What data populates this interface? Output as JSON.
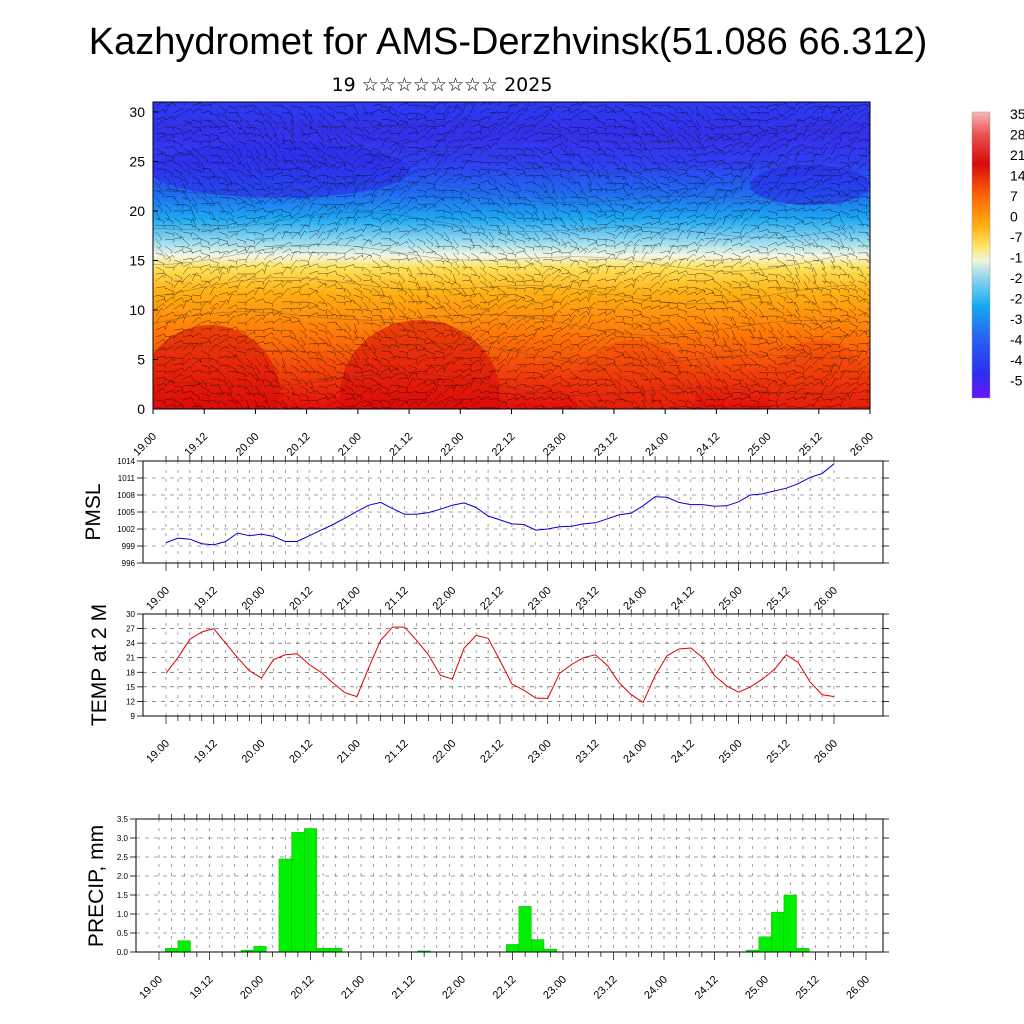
{
  "page": {
    "title": "Kazhydromet for AMS-Derzhvinsk(51.086 66.312)",
    "subtitle": "19 ☆☆☆☆☆☆☆☆ 2025"
  },
  "colors": {
    "pmsl_line": "#0000cc",
    "temp_line": "#dd0000",
    "precip_bar": "#00ee00",
    "colorbar": [
      "#5a12ff",
      "#2d2df0",
      "#2a5cf0",
      "#1e8ef5",
      "#16b4f5",
      "#8fd8ee",
      "#e8f4d8",
      "#ffeb70",
      "#ffd23c",
      "#ffb014",
      "#ff8f0a",
      "#ff6a05",
      "#f23a05",
      "#d80a0a",
      "#e02a2a",
      "#f07070",
      "#f6b0b0"
    ]
  },
  "chart_data": [
    {
      "type": "heatmap",
      "description_key": "cross_section",
      "ylim": [
        0,
        31
      ],
      "yticks": [
        "0",
        "5",
        "10",
        "15",
        "20",
        "25",
        "30"
      ],
      "xticks": [
        "19.00",
        "19.12",
        "20.00",
        "20.12",
        "21.00",
        "21.12",
        "22.00",
        "22.12",
        "23.00",
        "23.12",
        "24.00",
        "24.12",
        "25.00",
        "25.12",
        "26.00"
      ],
      "colorbar_labels": [
        "35",
        "28",
        "21",
        "14",
        "7",
        "0",
        "-7",
        "-1",
        "-2",
        "-2",
        "-3",
        "-4",
        "-4",
        "-5"
      ]
    },
    {
      "type": "line",
      "ylabel": "PMSL",
      "ylim": [
        996,
        1014
      ],
      "yticks": [
        "996",
        "999",
        "1002",
        "1005",
        "1008",
        "1011",
        "1014"
      ],
      "xticks": [
        "19.00",
        "19.12",
        "20.00",
        "20.12",
        "21.00",
        "21.12",
        "22.00",
        "22.12",
        "23.00",
        "23.12",
        "24.00",
        "24.12",
        "25.00",
        "25.12",
        "26.00"
      ],
      "x": [
        0,
        1,
        2,
        3,
        4,
        5,
        6,
        7,
        8,
        9,
        10,
        11,
        12,
        13,
        14,
        15,
        16,
        17,
        18,
        19,
        20,
        21,
        22,
        23,
        24,
        25,
        26,
        27,
        28,
        29,
        30,
        31,
        32,
        33,
        34,
        35,
        36,
        37,
        38,
        39,
        40,
        41,
        42,
        43,
        44,
        45,
        46,
        47,
        48,
        49,
        50,
        51,
        52,
        53,
        54,
        55,
        56
      ],
      "values": [
        999.6,
        1000.4,
        1000.2,
        999.4,
        999.2,
        999.8,
        1001.3,
        1000.8,
        1001.1,
        1000.7,
        999.8,
        999.8,
        1000.8,
        1001.8,
        1002.8,
        1003.9,
        1005.1,
        1006.2,
        1006.7,
        1005.6,
        1004.6,
        1004.6,
        1004.9,
        1005.5,
        1006.2,
        1006.6,
        1005.8,
        1004.3,
        1003.6,
        1002.9,
        1002.8,
        1001.8,
        1002.0,
        1002.4,
        1002.5,
        1002.9,
        1003.1,
        1003.8,
        1004.5,
        1004.8,
        1006.1,
        1007.7,
        1007.6,
        1006.7,
        1006.3,
        1006.3,
        1006.0,
        1006.1,
        1006.8,
        1008.0,
        1008.2,
        1008.7,
        1009.2,
        1010.0,
        1011.1,
        1011.8,
        1013.5
      ]
    },
    {
      "type": "line",
      "ylabel": "TEMP at 2 M",
      "ylim": [
        9,
        30
      ],
      "yticks": [
        "9",
        "12",
        "15",
        "18",
        "21",
        "24",
        "27",
        "30"
      ],
      "xticks": [
        "19.00",
        "19.12",
        "20.00",
        "20.12",
        "21.00",
        "21.12",
        "22.00",
        "22.12",
        "23.00",
        "23.12",
        "24.00",
        "24.12",
        "25.00",
        "25.12",
        "26.00"
      ],
      "x": [
        0,
        1,
        2,
        3,
        4,
        5,
        6,
        7,
        8,
        9,
        10,
        11,
        12,
        13,
        14,
        15,
        16,
        17,
        18,
        19,
        20,
        21,
        22,
        23,
        24,
        25,
        26,
        27,
        28,
        29,
        30,
        31,
        32,
        33,
        34,
        35,
        36,
        37,
        38,
        39,
        40,
        41,
        42,
        43,
        44,
        45,
        46,
        47,
        48,
        49,
        50,
        51,
        52,
        53,
        54,
        55,
        56
      ],
      "values": [
        17.8,
        21.0,
        24.8,
        26.3,
        27.0,
        24.0,
        21.0,
        18.3,
        16.8,
        20.6,
        21.6,
        21.8,
        19.6,
        18.0,
        15.8,
        13.8,
        13.0,
        19.0,
        24.6,
        27.3,
        27.3,
        24.6,
        21.6,
        17.4,
        16.6,
        23.0,
        25.6,
        25.0,
        20.4,
        15.6,
        14.3,
        12.7,
        12.6,
        17.8,
        19.6,
        21.0,
        21.6,
        19.4,
        15.8,
        13.4,
        11.8,
        17.3,
        21.4,
        22.8,
        23.0,
        21.0,
        17.3,
        15.2,
        13.9,
        15.0,
        16.6,
        18.6,
        21.6,
        20.0,
        16.0,
        13.4,
        13.0
      ]
    },
    {
      "type": "bar",
      "ylabel": "PRECIP, mm",
      "ylim": [
        0,
        3.5
      ],
      "yticks": [
        "0.0",
        "0.5",
        "1.0",
        "1.5",
        "2.0",
        "2.5",
        "3.0",
        "3.5"
      ],
      "xticks": [
        "19.00",
        "19.12",
        "20.00",
        "20.12",
        "21.00",
        "21.12",
        "22.00",
        "22.12",
        "23.00",
        "23.12",
        "24.00",
        "24.12",
        "25.00",
        "25.12",
        "26.00"
      ],
      "x": [
        1,
        2,
        7,
        8,
        10,
        11,
        12,
        13,
        14,
        21,
        28,
        29,
        30,
        31,
        47,
        48,
        49,
        50,
        51
      ],
      "values": [
        0.1,
        0.3,
        0.05,
        0.15,
        2.45,
        3.15,
        3.25,
        0.1,
        0.1,
        0.03,
        0.2,
        1.2,
        0.33,
        0.08,
        0.05,
        0.4,
        1.05,
        1.5,
        0.1
      ]
    }
  ]
}
